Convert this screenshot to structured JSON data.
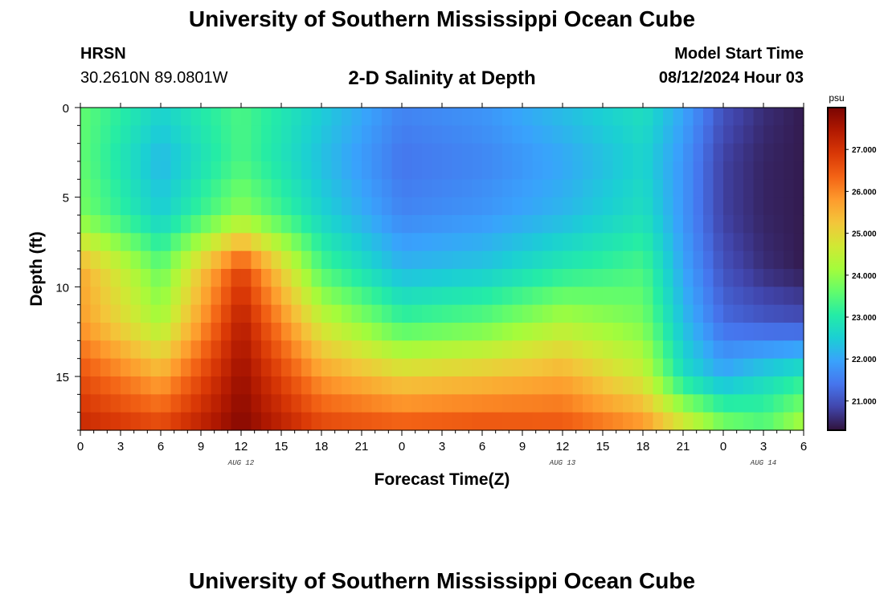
{
  "header": {
    "title": "University of Southern Mississippi Ocean Cube",
    "station": "HRSN",
    "coordinates": "30.2610N  89.0801W",
    "subtitle": "2-D Salinity at Depth",
    "model_start_label": "Model Start Time",
    "model_start_value": "08/12/2024 Hour 03"
  },
  "footer": {
    "title": "University of Southern Mississippi Ocean Cube"
  },
  "chart_data": {
    "type": "heatmap",
    "title": "2-D Salinity at Depth",
    "xlabel": "Forecast Time(Z)",
    "ylabel": "Depth (ft)",
    "xlim": [
      0,
      54
    ],
    "ylim": [
      18,
      0
    ],
    "x_ticks": [
      {
        "v": 0,
        "label": "0"
      },
      {
        "v": 3,
        "label": "3"
      },
      {
        "v": 6,
        "label": "6"
      },
      {
        "v": 9,
        "label": "9"
      },
      {
        "v": 12,
        "label": "12"
      },
      {
        "v": 15,
        "label": "15"
      },
      {
        "v": 18,
        "label": "18"
      },
      {
        "v": 21,
        "label": "21"
      },
      {
        "v": 24,
        "label": "0"
      },
      {
        "v": 27,
        "label": "3"
      },
      {
        "v": 30,
        "label": "6"
      },
      {
        "v": 33,
        "label": "9"
      },
      {
        "v": 36,
        "label": "12"
      },
      {
        "v": 39,
        "label": "15"
      },
      {
        "v": 42,
        "label": "18"
      },
      {
        "v": 45,
        "label": "21"
      },
      {
        "v": 48,
        "label": "0"
      },
      {
        "v": 51,
        "label": "3"
      },
      {
        "v": 54,
        "label": "6"
      }
    ],
    "y_ticks": [
      {
        "v": 0,
        "label": "0"
      },
      {
        "v": 5,
        "label": "5"
      },
      {
        "v": 10,
        "label": "10"
      },
      {
        "v": 15,
        "label": "15"
      }
    ],
    "date_labels": [
      {
        "v": 12,
        "label": "AUG 12"
      },
      {
        "v": 36,
        "label": "AUG 13"
      },
      {
        "v": 51,
        "label": "AUG 14"
      }
    ],
    "colorbar": {
      "unit": "psu",
      "min": 20.3,
      "max": 28.0,
      "ticks": [
        21.0,
        22.0,
        23.0,
        24.0,
        25.0,
        26.0,
        27.0
      ],
      "tick_labels": [
        "21.000",
        "22.000",
        "23.000",
        "24.000",
        "25.000",
        "26.000",
        "27.000"
      ],
      "colors": [
        "#30123b",
        "#4145ab",
        "#4675ed",
        "#39a2fc",
        "#1bcfd4",
        "#24eca6",
        "#61fc6c",
        "#a4fc3b",
        "#d1e834",
        "#f3c63a",
        "#fe9b2d",
        "#f36315",
        "#d93806",
        "#b11901",
        "#7a0402"
      ]
    },
    "z_depths_ft": [
      0,
      3,
      6,
      9,
      12,
      15,
      18
    ],
    "z_times_hr": [
      0,
      6,
      12,
      18,
      24,
      30,
      36,
      42,
      45,
      48,
      51,
      54
    ],
    "z_values_psu": [
      [
        23.6,
        22.6,
        23.4,
        22.5,
        21.6,
        21.8,
        22.3,
        22.8,
        22.0,
        21.0,
        20.6,
        20.4
      ],
      [
        23.6,
        22.2,
        23.4,
        22.3,
        21.4,
        21.6,
        22.0,
        22.6,
        21.8,
        20.8,
        20.5,
        20.4
      ],
      [
        23.8,
        22.5,
        24.0,
        22.6,
        21.6,
        21.8,
        22.2,
        22.8,
        21.8,
        20.8,
        20.5,
        20.4
      ],
      [
        25.6,
        23.6,
        26.8,
        23.4,
        22.2,
        22.4,
        23.0,
        23.4,
        22.0,
        21.0,
        20.6,
        20.4
      ],
      [
        25.8,
        24.2,
        27.4,
        24.6,
        23.3,
        23.6,
        24.3,
        23.8,
        22.3,
        21.3,
        21.1,
        21.0
      ],
      [
        26.6,
        25.6,
        27.7,
        25.8,
        25.1,
        25.3,
        25.6,
        24.6,
        22.8,
        22.1,
        22.6,
        23.0
      ],
      [
        27.2,
        26.8,
        27.9,
        26.8,
        26.6,
        26.7,
        26.6,
        26.0,
        25.0,
        24.0,
        23.6,
        24.4
      ]
    ]
  }
}
